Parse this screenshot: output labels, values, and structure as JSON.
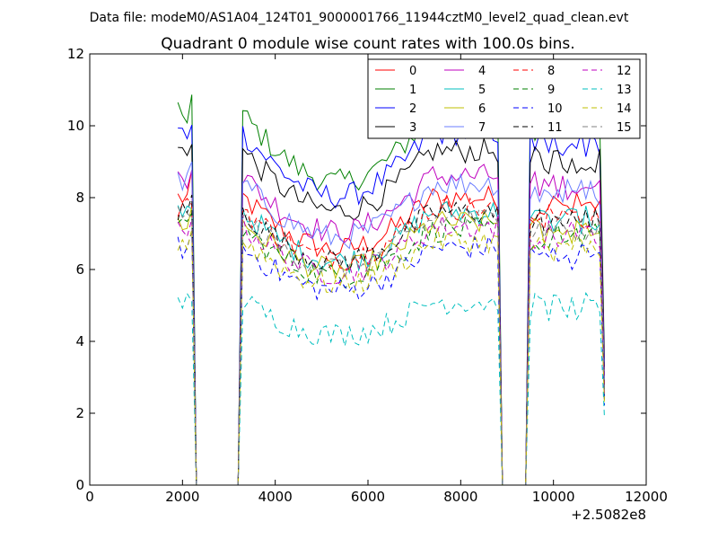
{
  "figure": {
    "suptitle": "Data file: modeM0/AS1A04_124T01_9000001766_11944cztM0_level2_quad_clean.evt"
  },
  "chart_data": {
    "type": "line",
    "title": "Quadrant 0 module wise count rates with 100.0s bins.",
    "xlabel": "",
    "ylabel": "",
    "x_offset_label": "+2.5082e8",
    "xlim": [
      0,
      12000
    ],
    "ylim": [
      0,
      12
    ],
    "xticks": [
      0,
      2000,
      4000,
      6000,
      8000,
      10000,
      12000
    ],
    "yticks": [
      0,
      2,
      4,
      6,
      8,
      10,
      12
    ],
    "legend": {
      "placement": "top-right",
      "ncol": 4
    },
    "segments_note": "data present 1900-2200, 3300-8800, 9500-11100; gaps drop to 0",
    "x": [
      1900,
      2000,
      2100,
      2200,
      2300,
      3200,
      3300,
      3400,
      3500,
      3600,
      3700,
      3800,
      3900,
      4000,
      4100,
      4200,
      4300,
      4400,
      4500,
      4600,
      4700,
      4800,
      4900,
      5000,
      5100,
      5200,
      5300,
      5400,
      5500,
      5600,
      5700,
      5800,
      5900,
      6000,
      6100,
      6200,
      6300,
      6400,
      6500,
      6600,
      6700,
      6800,
      6900,
      7000,
      7100,
      7200,
      7300,
      7400,
      7500,
      7600,
      7700,
      7800,
      7900,
      8000,
      8100,
      8200,
      8300,
      8400,
      8500,
      8600,
      8700,
      8800,
      8900,
      9400,
      9500,
      9600,
      9700,
      9800,
      9900,
      10000,
      10100,
      10200,
      10300,
      10400,
      10500,
      10600,
      10700,
      10800,
      10900,
      11000,
      11100
    ],
    "series": [
      {
        "name": "0",
        "color": "#ff0000",
        "dash": "solid",
        "level": 8.0
      },
      {
        "name": "1",
        "color": "#008000",
        "dash": "solid",
        "level": 10.3
      },
      {
        "name": "2",
        "color": "#0000ff",
        "dash": "solid",
        "level": 9.8
      },
      {
        "name": "3",
        "color": "#000000",
        "dash": "solid",
        "level": 9.3
      },
      {
        "name": "4",
        "color": "#bf00bf",
        "dash": "solid",
        "level": 8.6
      },
      {
        "name": "5",
        "color": "#00bfbf",
        "dash": "solid",
        "level": 7.6
      },
      {
        "name": "6",
        "color": "#bfbf00",
        "dash": "solid",
        "level": 7.3
      },
      {
        "name": "7",
        "color": "#6b7dff",
        "dash": "solid",
        "level": 8.4
      },
      {
        "name": "8",
        "color": "#ff0000",
        "dash": "dashed",
        "level": 7.7
      },
      {
        "name": "9",
        "color": "#008000",
        "dash": "dashed",
        "level": 7.1
      },
      {
        "name": "10",
        "color": "#0000ff",
        "dash": "dashed",
        "level": 6.6
      },
      {
        "name": "11",
        "color": "#000000",
        "dash": "dashed",
        "level": 7.6
      },
      {
        "name": "12",
        "color": "#bf00bf",
        "dash": "dashed",
        "level": 7.2
      },
      {
        "name": "13",
        "color": "#00bfbf",
        "dash": "dashed",
        "level": 5.1
      },
      {
        "name": "14",
        "color": "#bfbf00",
        "dash": "dashed",
        "level": 6.8
      },
      {
        "name": "15",
        "color": "#808080",
        "dash": "dashed",
        "level": 7.4
      }
    ]
  }
}
